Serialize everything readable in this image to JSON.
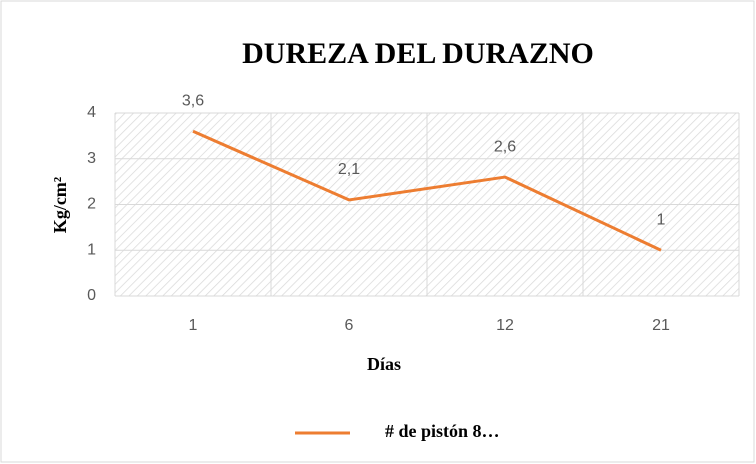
{
  "chart_data": {
    "type": "line",
    "title": "DUREZA DEL DURAZNO",
    "x_label": "Días",
    "y_label": "Kg/cm²",
    "categories": [
      "1",
      "6",
      "12",
      "21"
    ],
    "series": [
      {
        "name": "# de pistón 8…",
        "color": "#ed7d31",
        "values": [
          3.6,
          2.1,
          2.6,
          1
        ],
        "value_labels": [
          "3,6",
          "2,1",
          "2,6",
          "1"
        ]
      }
    ],
    "ylim": [
      0,
      4
    ],
    "yticks": [
      0,
      1,
      2,
      3,
      4
    ],
    "grid": true,
    "legend": "bottom"
  }
}
